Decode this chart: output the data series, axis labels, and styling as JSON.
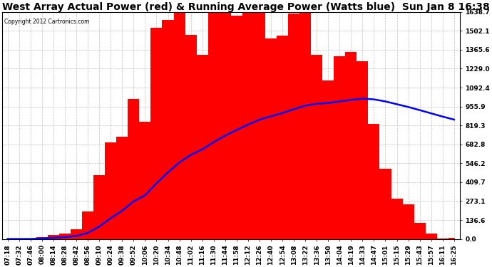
{
  "title": "West Array Actual Power (red) & Running Average Power (Watts blue)  Sun Jan 8 16:38",
  "copyright": "Copyright 2012 Cartronics.com",
  "ylabel_values": [
    0.0,
    136.6,
    273.1,
    409.7,
    546.2,
    682.8,
    819.3,
    955.9,
    1092.4,
    1229.0,
    1365.6,
    1502.1,
    1638.7
  ],
  "ymax": 1638.7,
  "background_color": "#ffffff",
  "plot_bg_color": "#ffffff",
  "bar_color": "#ff0000",
  "avg_color": "#0000ff",
  "grid_color": "#c0c0c0",
  "title_fontsize": 10,
  "tick_fontsize": 6.5,
  "time_labels": [
    "07:18",
    "07:32",
    "07:46",
    "08:00",
    "08:14",
    "08:28",
    "08:42",
    "08:56",
    "09:10",
    "09:24",
    "09:38",
    "09:52",
    "10:06",
    "10:20",
    "10:34",
    "10:48",
    "11:02",
    "11:16",
    "11:30",
    "11:44",
    "11:58",
    "12:12",
    "12:26",
    "12:40",
    "12:54",
    "13:08",
    "13:22",
    "13:36",
    "13:50",
    "14:04",
    "14:19",
    "14:33",
    "14:47",
    "15:01",
    "15:15",
    "15:29",
    "15:43",
    "15:57",
    "16:11",
    "16:25"
  ]
}
